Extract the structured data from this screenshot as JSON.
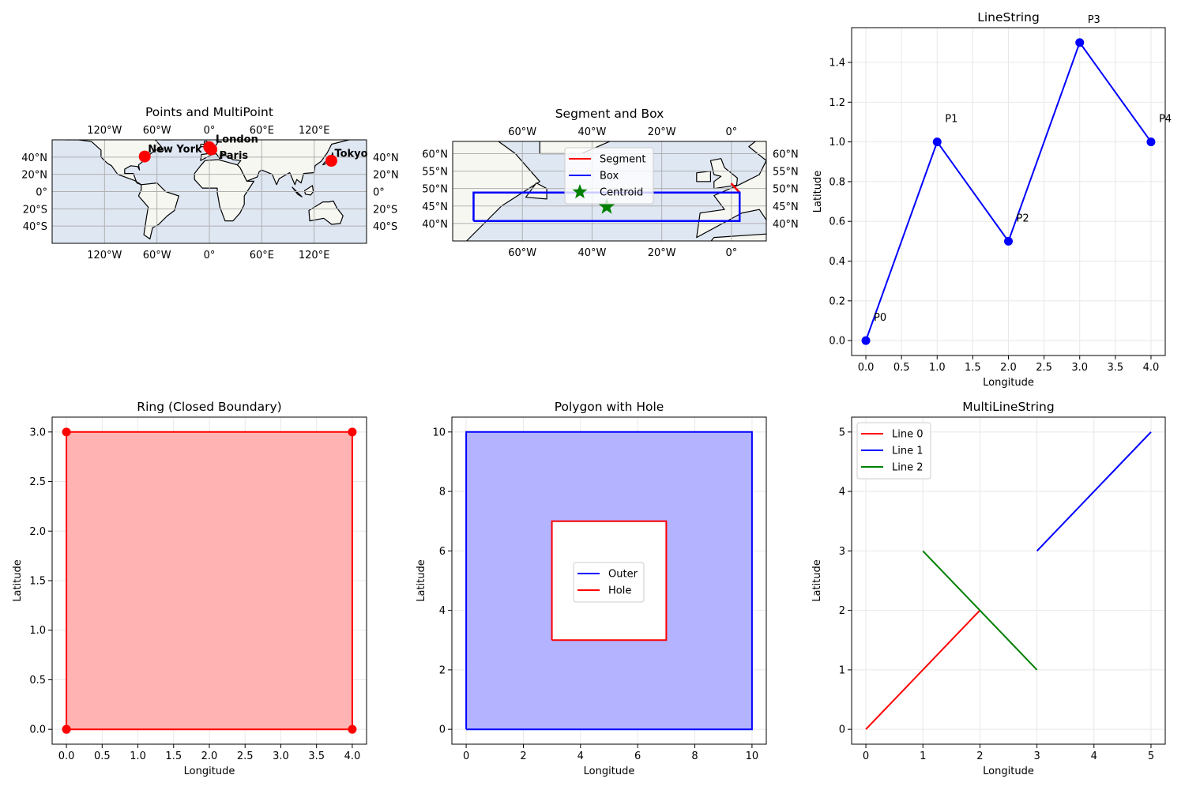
{
  "chart_data": [
    {
      "type": "scatter",
      "kind": "map",
      "title": "Points and MultiPoint",
      "xlim": [
        -180,
        180
      ],
      "ylim": [
        -60,
        60
      ],
      "xticks": [
        -120,
        -60,
        0,
        60,
        120
      ],
      "xtick_labels": [
        "120°W",
        "60°W",
        "0°",
        "60°E",
        "120°E"
      ],
      "yticks": [
        -40,
        -20,
        0,
        20,
        40
      ],
      "ytick_labels": [
        "40°S",
        "20°S",
        "0°",
        "20°N",
        "40°N"
      ],
      "ocean_color": "#dfe7f3",
      "land_color": "#f7f7f2",
      "marker_color": "#ff0000",
      "points": [
        {
          "label": "New York",
          "lon": -74.0,
          "lat": 40.7
        },
        {
          "label": "London",
          "lon": -0.1,
          "lat": 51.5
        },
        {
          "label": "Paris",
          "lon": 2.35,
          "lat": 48.86
        },
        {
          "label": "Tokyo",
          "lon": 139.7,
          "lat": 35.7
        }
      ]
    },
    {
      "type": "line",
      "kind": "map",
      "title": "Segment and Box",
      "xlim": [
        -80,
        10
      ],
      "ylim": [
        35,
        63.5
      ],
      "xticks": [
        -60,
        -40,
        -20,
        0
      ],
      "xtick_labels": [
        "60°W",
        "40°W",
        "20°W",
        "0°"
      ],
      "yticks": [
        40,
        45,
        50,
        55,
        60
      ],
      "ytick_labels": [
        "40°N",
        "45°N",
        "50°N",
        "55°N",
        "60°N"
      ],
      "ocean_color": "#dfe7f3",
      "land_color": "#f7f7f2",
      "legend": {
        "position": "upper center",
        "entries": [
          "Segment",
          "Box",
          "Centroid"
        ]
      },
      "series": [
        {
          "name": "Segment",
          "color": "#ff0000",
          "lon": [
            -0.1,
            2.35
          ],
          "lat": [
            51.5,
            48.86
          ]
        },
        {
          "name": "Box",
          "color": "#0000ff",
          "lon": [
            -74.0,
            2.35,
            2.35,
            -74.0,
            -74.0
          ],
          "lat": [
            40.7,
            40.7,
            48.86,
            48.86,
            40.7
          ]
        },
        {
          "name": "Centroid",
          "color": "#008000",
          "marker": "star",
          "lon": [
            -35.8
          ],
          "lat": [
            44.8
          ]
        }
      ]
    },
    {
      "type": "line",
      "title": "LineString",
      "xlabel": "Longitude",
      "ylabel": "Latitude",
      "xlim": [
        -0.2,
        4.2
      ],
      "ylim": [
        -0.075,
        1.575
      ],
      "grid": true,
      "xticks": [
        0,
        0.5,
        1,
        1.5,
        2,
        2.5,
        3,
        3.5,
        4
      ],
      "xtick_labels": [
        "0.0",
        "0.5",
        "1.0",
        "1.5",
        "2.0",
        "2.5",
        "3.0",
        "3.5",
        "4.0"
      ],
      "yticks": [
        0,
        0.2,
        0.4,
        0.6,
        0.8,
        1.0,
        1.2,
        1.4
      ],
      "ytick_labels": [
        "0.0",
        "0.2",
        "0.4",
        "0.6",
        "0.8",
        "1.0",
        "1.2",
        "1.4"
      ],
      "series": [
        {
          "color": "#0000ff",
          "x": [
            0,
            1,
            2,
            3,
            4
          ],
          "y": [
            0,
            1,
            0.5,
            1.5,
            1
          ],
          "point_labels": [
            "P0",
            "P1",
            "P2",
            "P3",
            "P4"
          ]
        }
      ]
    },
    {
      "type": "area",
      "title": "Ring (Closed Boundary)",
      "xlabel": "Longitude",
      "ylabel": "Latitude",
      "xlim": [
        -0.2,
        4.2
      ],
      "ylim": [
        -0.15,
        3.15
      ],
      "grid": true,
      "xticks": [
        0,
        0.5,
        1,
        1.5,
        2,
        2.5,
        3,
        3.5,
        4
      ],
      "xtick_labels": [
        "0.0",
        "0.5",
        "1.0",
        "1.5",
        "2.0",
        "2.5",
        "3.0",
        "3.5",
        "4.0"
      ],
      "yticks": [
        0,
        0.5,
        1,
        1.5,
        2,
        2.5,
        3
      ],
      "ytick_labels": [
        "0.0",
        "0.5",
        "1.0",
        "1.5",
        "2.0",
        "2.5",
        "3.0"
      ],
      "series": [
        {
          "color": "#ff0000",
          "fill": "#ffb3b3",
          "x": [
            0,
            4,
            4,
            0,
            0
          ],
          "y": [
            0,
            0,
            3,
            3,
            0
          ],
          "markers": true
        }
      ]
    },
    {
      "type": "area",
      "title": "Polygon with Hole",
      "xlabel": "Longitude",
      "ylabel": "Latitude",
      "xlim": [
        -0.5,
        10.5
      ],
      "ylim": [
        -0.5,
        10.5
      ],
      "grid": true,
      "xticks": [
        0,
        2,
        4,
        6,
        8,
        10
      ],
      "xtick_labels": [
        "0",
        "2",
        "4",
        "6",
        "8",
        "10"
      ],
      "yticks": [
        0,
        2,
        4,
        6,
        8,
        10
      ],
      "ytick_labels": [
        "0",
        "2",
        "4",
        "6",
        "8",
        "10"
      ],
      "legend": {
        "position": "center",
        "entries": [
          "Outer",
          "Hole"
        ]
      },
      "series": [
        {
          "name": "Outer",
          "color": "#0000ff",
          "fill": "#b3b3ff",
          "x": [
            0,
            10,
            10,
            0,
            0
          ],
          "y": [
            0,
            0,
            10,
            10,
            0
          ]
        },
        {
          "name": "Hole",
          "color": "#ff0000",
          "fill": "#ffffff",
          "x": [
            3,
            7,
            7,
            3,
            3
          ],
          "y": [
            3,
            3,
            7,
            7,
            3
          ]
        }
      ]
    },
    {
      "type": "line",
      "title": "MultiLineString",
      "xlabel": "Longitude",
      "ylabel": "Latitude",
      "xlim": [
        -0.25,
        5.25
      ],
      "ylim": [
        -0.25,
        5.25
      ],
      "grid": true,
      "xticks": [
        0,
        1,
        2,
        3,
        4,
        5
      ],
      "xtick_labels": [
        "0",
        "1",
        "2",
        "3",
        "4",
        "5"
      ],
      "yticks": [
        0,
        1,
        2,
        3,
        4,
        5
      ],
      "ytick_labels": [
        "0",
        "1",
        "2",
        "3",
        "4",
        "5"
      ],
      "legend": {
        "position": "upper left",
        "entries": [
          "Line 0",
          "Line 1",
          "Line 2"
        ]
      },
      "series": [
        {
          "name": "Line 0",
          "color": "#ff0000",
          "x": [
            0,
            2
          ],
          "y": [
            0,
            2
          ]
        },
        {
          "name": "Line 1",
          "color": "#0000ff",
          "x": [
            3,
            5
          ],
          "y": [
            3,
            5
          ]
        },
        {
          "name": "Line 2",
          "color": "#008000",
          "x": [
            1,
            3
          ],
          "y": [
            3,
            1
          ]
        }
      ]
    }
  ]
}
